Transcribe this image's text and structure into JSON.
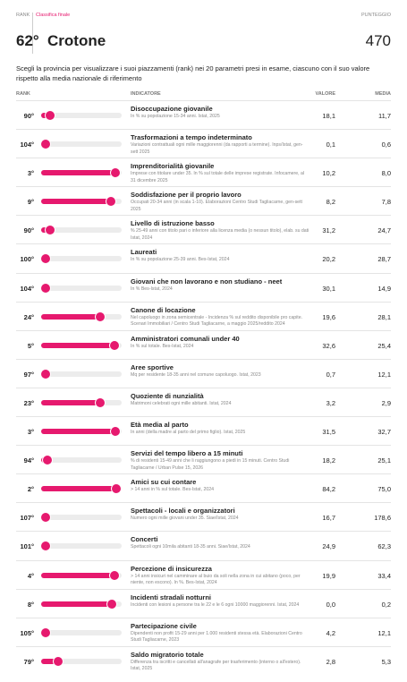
{
  "header": {
    "rank_label": "RANK",
    "final_label": "Classifica finale",
    "score_label": "PUNTEGGIO",
    "rank": "62°",
    "province": "Crotone",
    "score": "470"
  },
  "intro": "Scegli la provincia per visualizzare i suoi piazzamenti (rank) nei 20 parametri presi in esame, ciascuno con il suo valore rispetto alla media nazionale di riferimento",
  "table": {
    "columns": [
      "RANK",
      "INDICATORE",
      "VALORE",
      "MEDIA"
    ],
    "rows": [
      {
        "rank": {
          "value": 90,
          "label": "90°"
        },
        "name": "Disoccupazione giovanile",
        "desc": "In % su popolazione 15-34 anni. Istat, 2025",
        "value": "18,1",
        "mean": "11,7"
      },
      {
        "rank": {
          "value": 104,
          "label": "104°"
        },
        "name": "Trasformazioni a tempo indeterminato",
        "desc": "Variazioni contrattuali ogni mille maggiorenni (da rapporti a termine). Inps/Istat, gen-sett 2025",
        "value": "0,1",
        "mean": "0,6"
      },
      {
        "rank": {
          "value": 3,
          "label": "3°"
        },
        "name": "Imprenditorialità giovanile",
        "desc": "Imprese con titolare under 35. In % sul totale delle imprese registrate. Infocamere, al 31 dicembre 2025",
        "value": "10,2",
        "mean": "8,0"
      },
      {
        "rank": {
          "value": 9,
          "label": "9°"
        },
        "name": "Soddisfazione per il proprio lavoro",
        "desc": "Occupati 20-34 anni (in scala 1-10). Elaborazioni Centro Studi Tagliacarne, gen-sett 2025",
        "value": "8,2",
        "mean": "7,8"
      },
      {
        "rank": {
          "value": 90,
          "label": "90°"
        },
        "name": "Livello di istruzione basso",
        "desc": "% 25-49 anni con titolo pari o inferiore alla licenza media (o nessun titolo), elab. su dati Istat, 2024",
        "value": "31,2",
        "mean": "24,7"
      },
      {
        "rank": {
          "value": 100,
          "label": "100°"
        },
        "name": "Laureati",
        "desc": "In % su popolazione 25-39 anni. Bes-Istat, 2024",
        "value": "20,2",
        "mean": "28,7"
      },
      {
        "rank": {
          "value": 104,
          "label": "104°"
        },
        "name": "Giovani che non lavorano e non studiano - neet",
        "desc": "In % Bes-Istat, 2024",
        "value": "30,1",
        "mean": "14,9"
      },
      {
        "rank": {
          "value": 24,
          "label": "24°"
        },
        "name": "Canone di locazione",
        "desc": "Nel capoluogo in zona semicentrale - Incidenza % sul reddito disponibile pro capite. Scenari Immobiliari / Centro Studi Tagliacarne, a maggio 2025/reddito 2024",
        "value": "19,6",
        "mean": "28,1"
      },
      {
        "rank": {
          "value": 5,
          "label": "5°"
        },
        "name": "Amministratori comunali under 40",
        "desc": "In % sul totale. Bes-Istat, 2024",
        "value": "32,6",
        "mean": "25,4"
      },
      {
        "rank": {
          "value": 97,
          "label": "97°"
        },
        "name": "Aree sportive",
        "desc": "Mq per residente 18-35 anni nel comune capoluogo. Istat, 2023",
        "value": "0,7",
        "mean": "12,1"
      },
      {
        "rank": {
          "value": 23,
          "label": "23°"
        },
        "name": "Quoziente di nunzialità",
        "desc": "Matrimoni celebrati ogni mille abitanti. Istat, 2024",
        "value": "3,2",
        "mean": "2,9"
      },
      {
        "rank": {
          "value": 3,
          "label": "3°"
        },
        "name": "Età media al parto",
        "desc": "In anni (della madre al parto del primo figlio). Istat, 2025",
        "value": "31,5",
        "mean": "32,7"
      },
      {
        "rank": {
          "value": 94,
          "label": "94°"
        },
        "name": "Servizi del tempo libero a 15 minuti",
        "desc": "% di residenti 15-49 anni che li raggiungono a piedi in 15 minuti. Centro Studi Tagliacarne / Urban Pulse 15, 2026",
        "value": "18,2",
        "mean": "25,1"
      },
      {
        "rank": {
          "value": 2,
          "label": "2°"
        },
        "name": "Amici su cui contare",
        "desc": "> 14 anni in % sul totale. Bes-Istat, 2024",
        "value": "84,2",
        "mean": "75,0"
      },
      {
        "rank": {
          "value": 107,
          "label": "107°"
        },
        "name": "Spettacoli - locali e organizzatori",
        "desc": "Numero ogni mille giovani under 35. Siae/Istat, 2024",
        "value": "16,7",
        "mean": "178,6"
      },
      {
        "rank": {
          "value": 101,
          "label": "101°"
        },
        "name": "Concerti",
        "desc": "Spettacoli ogni 10mila abitanti 18-35 anni. Siae/Istat, 2024",
        "value": "24,9",
        "mean": "62,3"
      },
      {
        "rank": {
          "value": 4,
          "label": "4°"
        },
        "name": "Percezione di insicurezza",
        "desc": "> 14 anni insicuri nel camminare al buio da soli nella zona in cui abitano (poco, per niente, non escono). In %. Bes-Istat, 2024",
        "value": "19,9",
        "mean": "33,4"
      },
      {
        "rank": {
          "value": 8,
          "label": "8°"
        },
        "name": "Incidenti stradali notturni",
        "desc": "Incidenti con lesioni a persone tra le 22 e le 6 ogni 10000 maggiorenni. Istat, 2024",
        "value": "0,0",
        "mean": "0,2"
      },
      {
        "rank": {
          "value": 105,
          "label": "105°"
        },
        "name": "Partecipazione civile",
        "desc": "Dipendenti non profit 15-29 anni per 1.000 residenti stessa età. Elaborazioni Centro Studi Tagliacarne, 2023",
        "value": "4,2",
        "mean": "12,1"
      },
      {
        "rank": {
          "value": 79,
          "label": "79°"
        },
        "name": "Saldo migratorio totale",
        "desc": "Differenza tra iscritti e cancellati all'anagrafe per trasferimento (interno o all'estero). Istat, 2025",
        "value": "2,8",
        "mean": "5,3"
      }
    ]
  }
}
